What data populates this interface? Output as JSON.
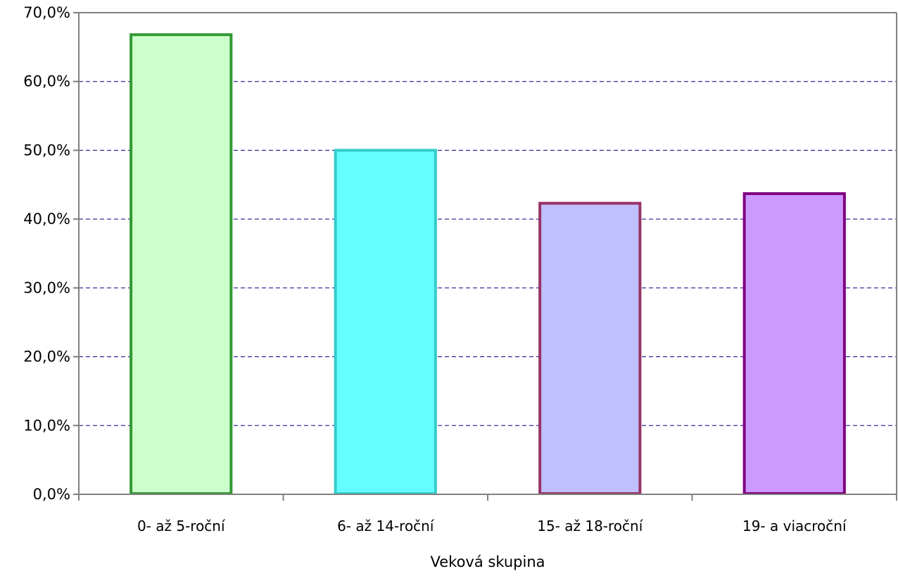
{
  "chart_data": {
    "type": "bar",
    "xlabel": "Veková skupina",
    "ylabel": "",
    "ylim": [
      0,
      70
    ],
    "y_tick_values": [
      0,
      10,
      20,
      30,
      40,
      50,
      60,
      70
    ],
    "y_tick_labels": [
      "0,0%",
      "10,0%",
      "20,0%",
      "30,0%",
      "40,0%",
      "50,0%",
      "60,0%",
      "70,0%"
    ],
    "categories": [
      "0- až 5-roční",
      "6- až 14-roční",
      "15- až 18-roční",
      "19- a viacroční"
    ],
    "values": [
      66.8,
      50.0,
      42.3,
      43.7
    ],
    "bar_fill_colors": [
      "#ccffcc",
      "#66ffff",
      "#c0c0ff",
      "#cc99ff"
    ],
    "bar_border_colors": [
      "#339933",
      "#33cccc",
      "#993366",
      "#800080"
    ],
    "grid": true,
    "grid_style": "dashed",
    "grid_color": "#000080",
    "legend": "none"
  }
}
